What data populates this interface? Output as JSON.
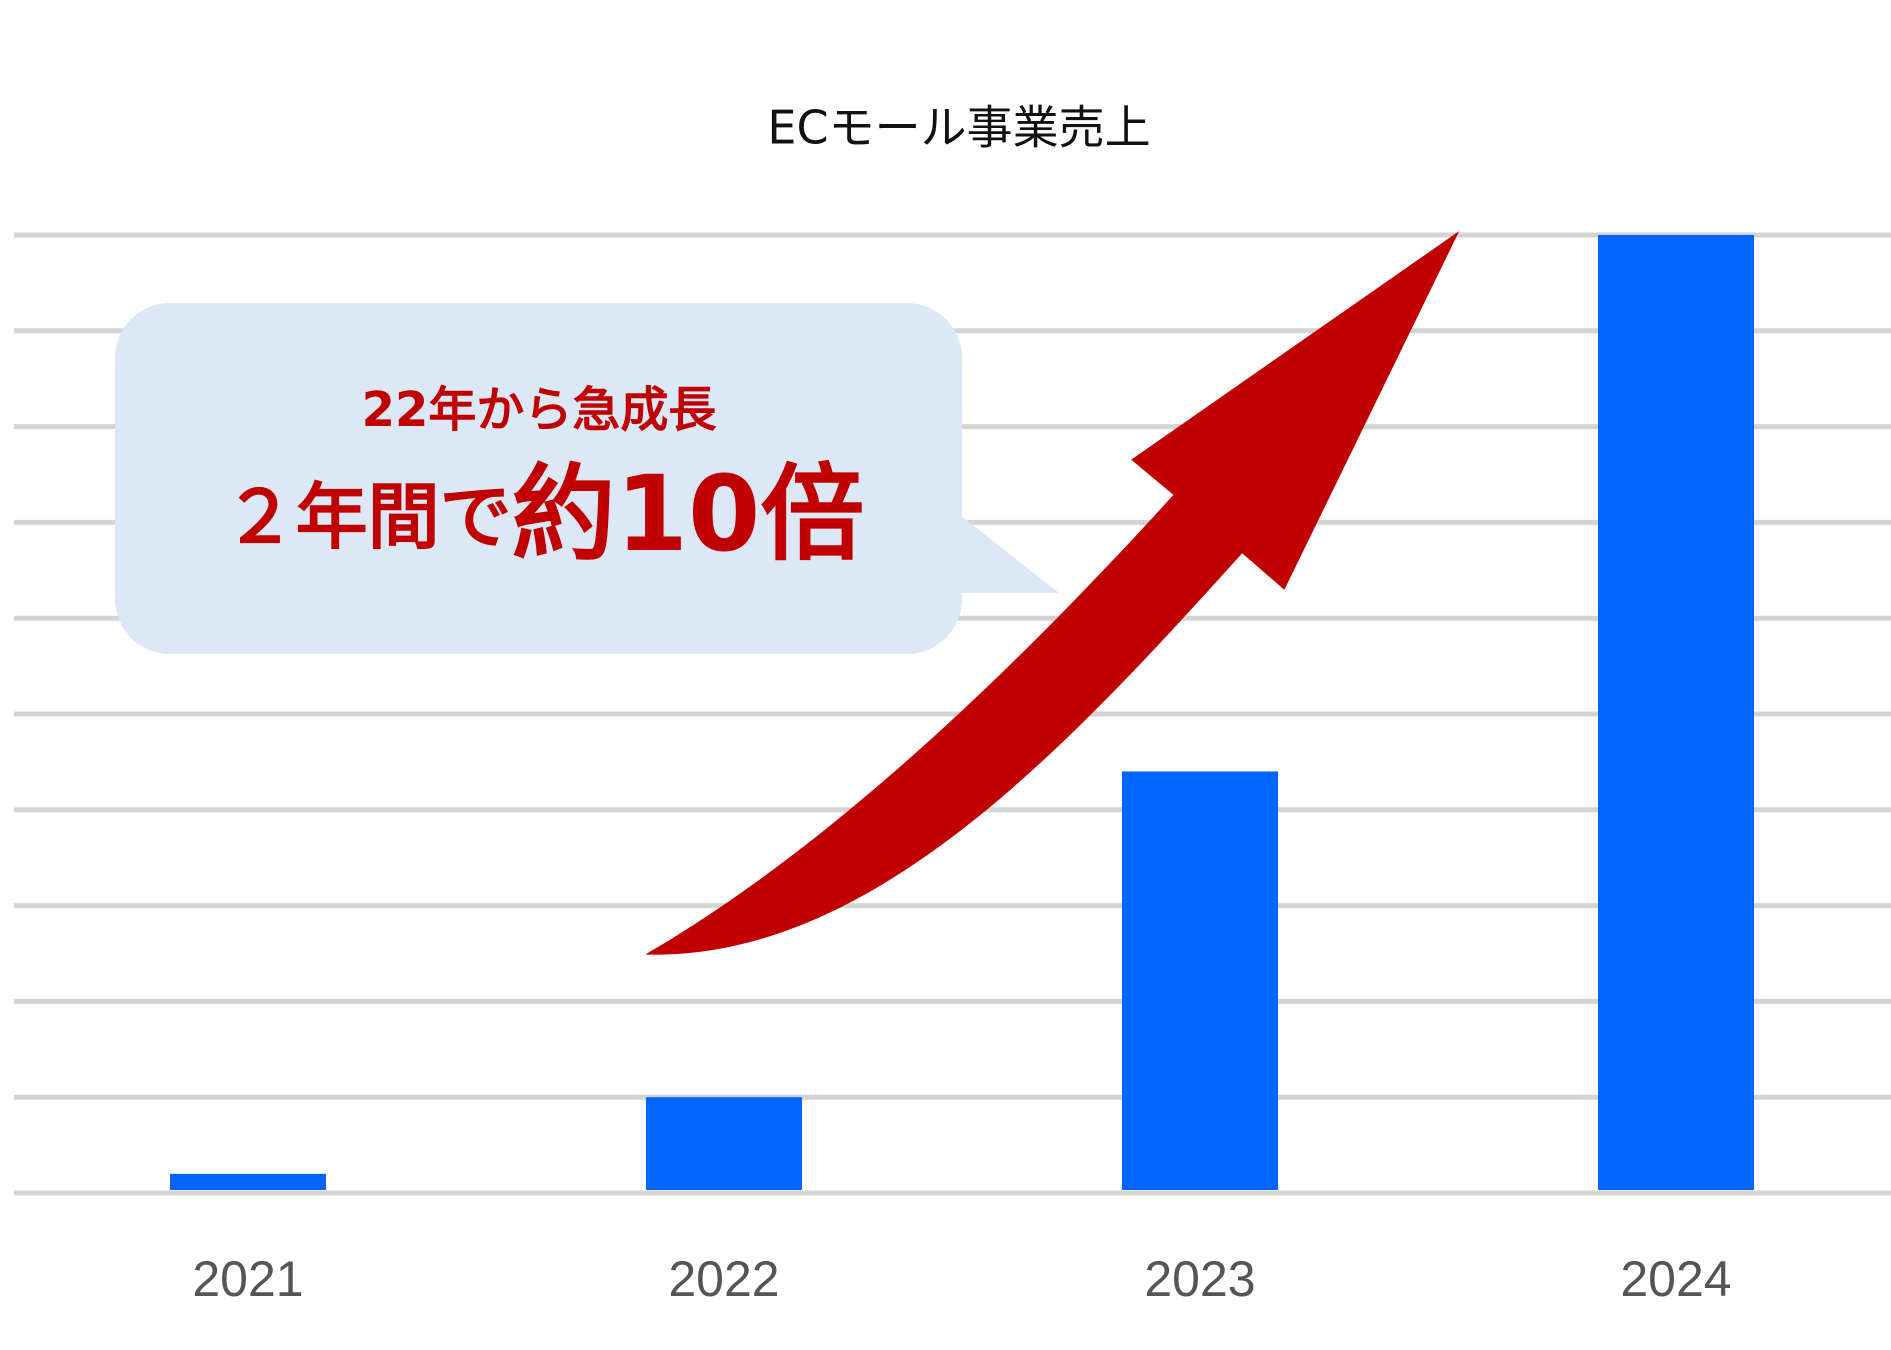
{
  "chart_data": {
    "type": "bar",
    "title": "ECモール事業売上",
    "categories": [
      "2021",
      "2022",
      "2023",
      "2024"
    ],
    "values": [
      0.2,
      1.0,
      4.4,
      10.0
    ],
    "color": "#0066ff",
    "ylim": [
      0,
      10
    ],
    "yticks": [
      0,
      1,
      2,
      3,
      4,
      5,
      6,
      7,
      8,
      9,
      10
    ],
    "grid": true,
    "annotations": [
      "22年から急成長",
      "２年間で",
      "約10倍"
    ]
  }
}
